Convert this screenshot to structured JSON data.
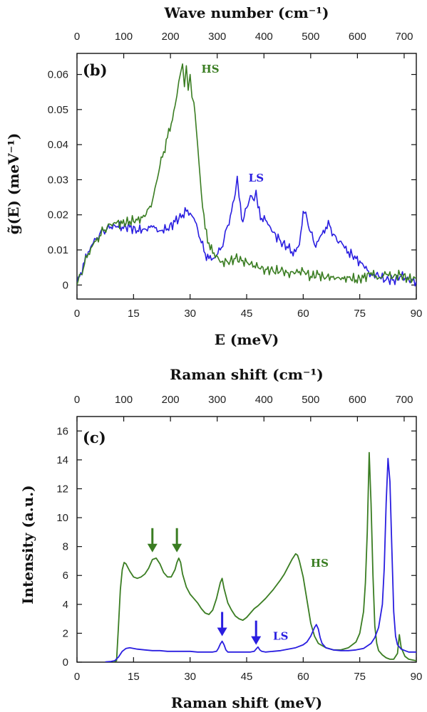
{
  "colors": {
    "HS": "#3a7d22",
    "LS": "#2a1ee0",
    "axis": "#111111"
  },
  "chart_data": [
    {
      "type": "line",
      "panel": "(b)",
      "xlabel": "E (meV)",
      "x2label": "Wave number (cm⁻¹)",
      "ylabel": "g̃(E) (meV⁻¹)",
      "xlim": [
        0,
        90
      ],
      "ylim": [
        -0.004,
        0.066
      ],
      "x2lim": [
        0,
        726
      ],
      "x_ticks": [
        0,
        15,
        30,
        45,
        60,
        75,
        90
      ],
      "x_tick_labels": [
        "0",
        "15",
        "30",
        "45",
        "60",
        "75",
        "90"
      ],
      "y_ticks": [
        0,
        0.01,
        0.02,
        0.03,
        0.04,
        0.05,
        0.06
      ],
      "y_tick_labels": [
        "0",
        "0.01",
        "0.02",
        "0.03",
        "0.04",
        "0.05",
        "0.06"
      ],
      "x2_ticks": [
        0,
        100,
        200,
        300,
        400,
        500,
        600,
        700
      ],
      "x2_tick_labels": [
        "0",
        "100",
        "200",
        "300",
        "400",
        "500",
        "600",
        "700"
      ],
      "grid": false,
      "annotations": [
        {
          "text": "HS",
          "series": "HS",
          "x": 33,
          "y": 0.0605
        },
        {
          "text": "LS",
          "series": "LS",
          "x": 45.5,
          "y": 0.0295
        }
      ],
      "series": [
        {
          "name": "HS",
          "x": [
            0,
            1,
            2,
            3,
            4,
            5,
            6,
            7,
            8,
            9,
            10,
            12,
            14,
            16,
            18,
            20,
            21,
            22,
            23,
            24,
            25,
            26,
            26.5,
            27,
            27.5,
            28,
            28.5,
            29,
            29.5,
            30,
            30.5,
            31,
            32,
            33,
            34,
            35,
            36,
            37,
            38,
            40,
            42,
            44,
            46,
            48,
            50,
            52,
            54,
            56,
            58,
            60,
            62,
            64,
            66,
            68,
            70,
            72,
            74,
            76,
            78,
            80,
            82,
            84,
            86,
            88,
            90
          ],
          "y": [
            0,
            0.003,
            0.006,
            0.009,
            0.011,
            0.0125,
            0.014,
            0.0155,
            0.0165,
            0.0172,
            0.0178,
            0.0175,
            0.0182,
            0.0185,
            0.0195,
            0.024,
            0.029,
            0.034,
            0.038,
            0.042,
            0.046,
            0.051,
            0.054,
            0.058,
            0.0605,
            0.063,
            0.0565,
            0.0625,
            0.0555,
            0.06,
            0.0535,
            0.052,
            0.04,
            0.026,
            0.016,
            0.012,
            0.009,
            0.0085,
            0.0065,
            0.0065,
            0.0075,
            0.007,
            0.006,
            0.005,
            0.0045,
            0.004,
            0.004,
            0.0035,
            0.0035,
            0.004,
            0.0025,
            0.003,
            0.002,
            0.0025,
            0.0015,
            0.0022,
            0.0015,
            0.002,
            0.0035,
            0.002,
            0.003,
            0.0025,
            0.003,
            0.0015,
            0.002
          ]
        },
        {
          "name": "LS",
          "x": [
            0,
            1,
            2,
            3,
            4,
            5,
            6,
            7,
            8,
            10,
            12,
            14,
            16,
            18,
            20,
            22,
            24,
            26,
            28,
            29,
            30,
            31,
            32,
            33,
            34,
            35,
            36,
            37,
            38,
            39,
            40,
            41,
            42,
            42.5,
            43,
            44,
            45,
            46,
            47,
            47.5,
            48,
            49,
            50,
            51,
            52,
            54,
            56,
            57,
            58,
            59,
            60,
            61,
            62,
            63,
            64,
            65,
            66,
            67,
            68,
            69,
            70,
            71,
            72,
            74,
            76,
            78,
            80,
            82,
            84,
            86,
            88,
            90
          ],
          "y": [
            0,
            0.0035,
            0.0065,
            0.0095,
            0.0115,
            0.013,
            0.0145,
            0.0155,
            0.016,
            0.017,
            0.0165,
            0.0165,
            0.0155,
            0.016,
            0.0165,
            0.0155,
            0.016,
            0.018,
            0.02,
            0.021,
            0.0205,
            0.019,
            0.016,
            0.012,
            0.009,
            0.0075,
            0.0075,
            0.0085,
            0.01,
            0.013,
            0.017,
            0.021,
            0.026,
            0.031,
            0.025,
            0.018,
            0.022,
            0.0255,
            0.024,
            0.027,
            0.022,
            0.019,
            0.0185,
            0.017,
            0.015,
            0.0125,
            0.0105,
            0.0095,
            0.0095,
            0.0115,
            0.021,
            0.019,
            0.015,
            0.0115,
            0.0125,
            0.0145,
            0.0165,
            0.017,
            0.0145,
            0.0125,
            0.0125,
            0.0105,
            0.0095,
            0.0075,
            0.0055,
            0.003,
            0.0025,
            0.0015,
            0.0015,
            0.0025,
            0.0015,
            0.001
          ]
        }
      ]
    },
    {
      "type": "line",
      "panel": "(c)",
      "xlabel": "Raman shift (meV)",
      "x2label": "Raman shift (cm⁻¹)",
      "ylabel": "Intensity (a.u.)",
      "xlim": [
        0,
        90
      ],
      "ylim": [
        0,
        17
      ],
      "x2lim": [
        0,
        726
      ],
      "x_ticks": [
        0,
        15,
        30,
        45,
        60,
        75,
        90
      ],
      "x_tick_labels": [
        "0",
        "15",
        "30",
        "45",
        "60",
        "75",
        "90"
      ],
      "y_ticks": [
        0,
        2,
        4,
        6,
        8,
        10,
        12,
        14,
        16
      ],
      "y_tick_labels": [
        "0",
        "2",
        "4",
        "6",
        "8",
        "10",
        "12",
        "14",
        "16"
      ],
      "x2_ticks": [
        0,
        100,
        200,
        300,
        400,
        500,
        600,
        700
      ],
      "x2_tick_labels": [
        "0",
        "100",
        "200",
        "300",
        "400",
        "500",
        "600",
        "700"
      ],
      "grid": false,
      "annotations": [
        {
          "text": "HS",
          "series": "HS",
          "x": 62,
          "y": 6.6
        },
        {
          "text": "LS",
          "series": "LS",
          "x": 52,
          "y": 1.55
        }
      ],
      "arrows": [
        {
          "series": "HS",
          "x": 20,
          "y_tip": 7.6
        },
        {
          "series": "HS",
          "x": 26.5,
          "y_tip": 7.6
        },
        {
          "series": "LS",
          "x": 38.5,
          "y_tip": 1.8
        },
        {
          "series": "LS",
          "x": 47.5,
          "y_tip": 1.2
        }
      ],
      "series": [
        {
          "name": "HS",
          "x": [
            9.5,
            10.5,
            11,
            11.5,
            12,
            12.5,
            13,
            14,
            15,
            16,
            17,
            18,
            19,
            20,
            21,
            22,
            23,
            24,
            25,
            26,
            26.5,
            27,
            27.5,
            28,
            29,
            30,
            31,
            32,
            33,
            34,
            35,
            36,
            37,
            38,
            38.5,
            39,
            40,
            41,
            42,
            43,
            44,
            45,
            46,
            47,
            48,
            50,
            52,
            54,
            55,
            56,
            57,
            58,
            58.5,
            59,
            60,
            61,
            62,
            63,
            64,
            66,
            68,
            70,
            72,
            74,
            75,
            76,
            76.5,
            77,
            77.5,
            78,
            78.5,
            79,
            79.5,
            80,
            81,
            82,
            83,
            84,
            85,
            85.5,
            86,
            87,
            88,
            90
          ],
          "y": [
            0,
            0.1,
            2.5,
            5,
            6.4,
            6.9,
            6.8,
            6.3,
            5.9,
            5.8,
            5.9,
            6.1,
            6.5,
            7.1,
            7.2,
            6.8,
            6.2,
            5.9,
            5.9,
            6.4,
            6.9,
            7.2,
            6.9,
            6.1,
            5.2,
            4.7,
            4.4,
            4.1,
            3.7,
            3.4,
            3.3,
            3.6,
            4.4,
            5.5,
            5.8,
            5.1,
            4.1,
            3.6,
            3.2,
            3,
            2.9,
            3.1,
            3.4,
            3.7,
            3.9,
            4.4,
            5.0,
            5.7,
            6.1,
            6.6,
            7.1,
            7.5,
            7.4,
            7.0,
            5.9,
            4.3,
            2.7,
            1.8,
            1.3,
            1.0,
            0.85,
            0.85,
            1.0,
            1.4,
            2.0,
            3.5,
            5.5,
            9.0,
            14.5,
            11.0,
            6.0,
            2.5,
            1.3,
            0.8,
            0.5,
            0.3,
            0.2,
            0.2,
            0.6,
            1.9,
            1.0,
            0.4,
            0.2,
            0.1
          ]
        },
        {
          "name": "LS",
          "x": [
            7.5,
            9,
            10,
            11,
            12,
            13,
            14,
            15,
            16,
            18,
            20,
            22,
            24,
            26,
            28,
            30,
            32,
            34,
            36,
            37,
            37.5,
            38,
            38.5,
            39,
            39.5,
            40,
            42,
            44,
            46,
            47,
            47.5,
            48,
            48.5,
            49,
            50,
            52,
            54,
            56,
            58,
            60,
            61,
            62,
            63,
            63.5,
            64,
            64.5,
            65,
            66,
            68,
            70,
            72,
            74,
            76,
            78,
            79,
            80,
            81,
            81.5,
            82,
            82.5,
            83,
            83.5,
            84,
            84.5,
            85,
            86,
            87,
            88,
            90
          ],
          "y": [
            0.02,
            0.05,
            0.1,
            0.35,
            0.75,
            0.95,
            1.0,
            0.95,
            0.9,
            0.85,
            0.8,
            0.8,
            0.75,
            0.75,
            0.75,
            0.75,
            0.7,
            0.7,
            0.7,
            0.75,
            0.95,
            1.25,
            1.45,
            1.2,
            0.85,
            0.7,
            0.7,
            0.7,
            0.7,
            0.75,
            0.9,
            1.05,
            0.85,
            0.75,
            0.7,
            0.75,
            0.8,
            0.9,
            1.0,
            1.2,
            1.4,
            1.8,
            2.4,
            2.6,
            2.3,
            1.7,
            1.3,
            1.0,
            0.85,
            0.8,
            0.8,
            0.85,
            0.95,
            1.3,
            1.7,
            2.4,
            4.0,
            6.5,
            11.0,
            14.1,
            12.5,
            8.0,
            3.5,
            1.8,
            1.2,
            0.9,
            0.8,
            0.7,
            0.7
          ]
        }
      ]
    }
  ]
}
